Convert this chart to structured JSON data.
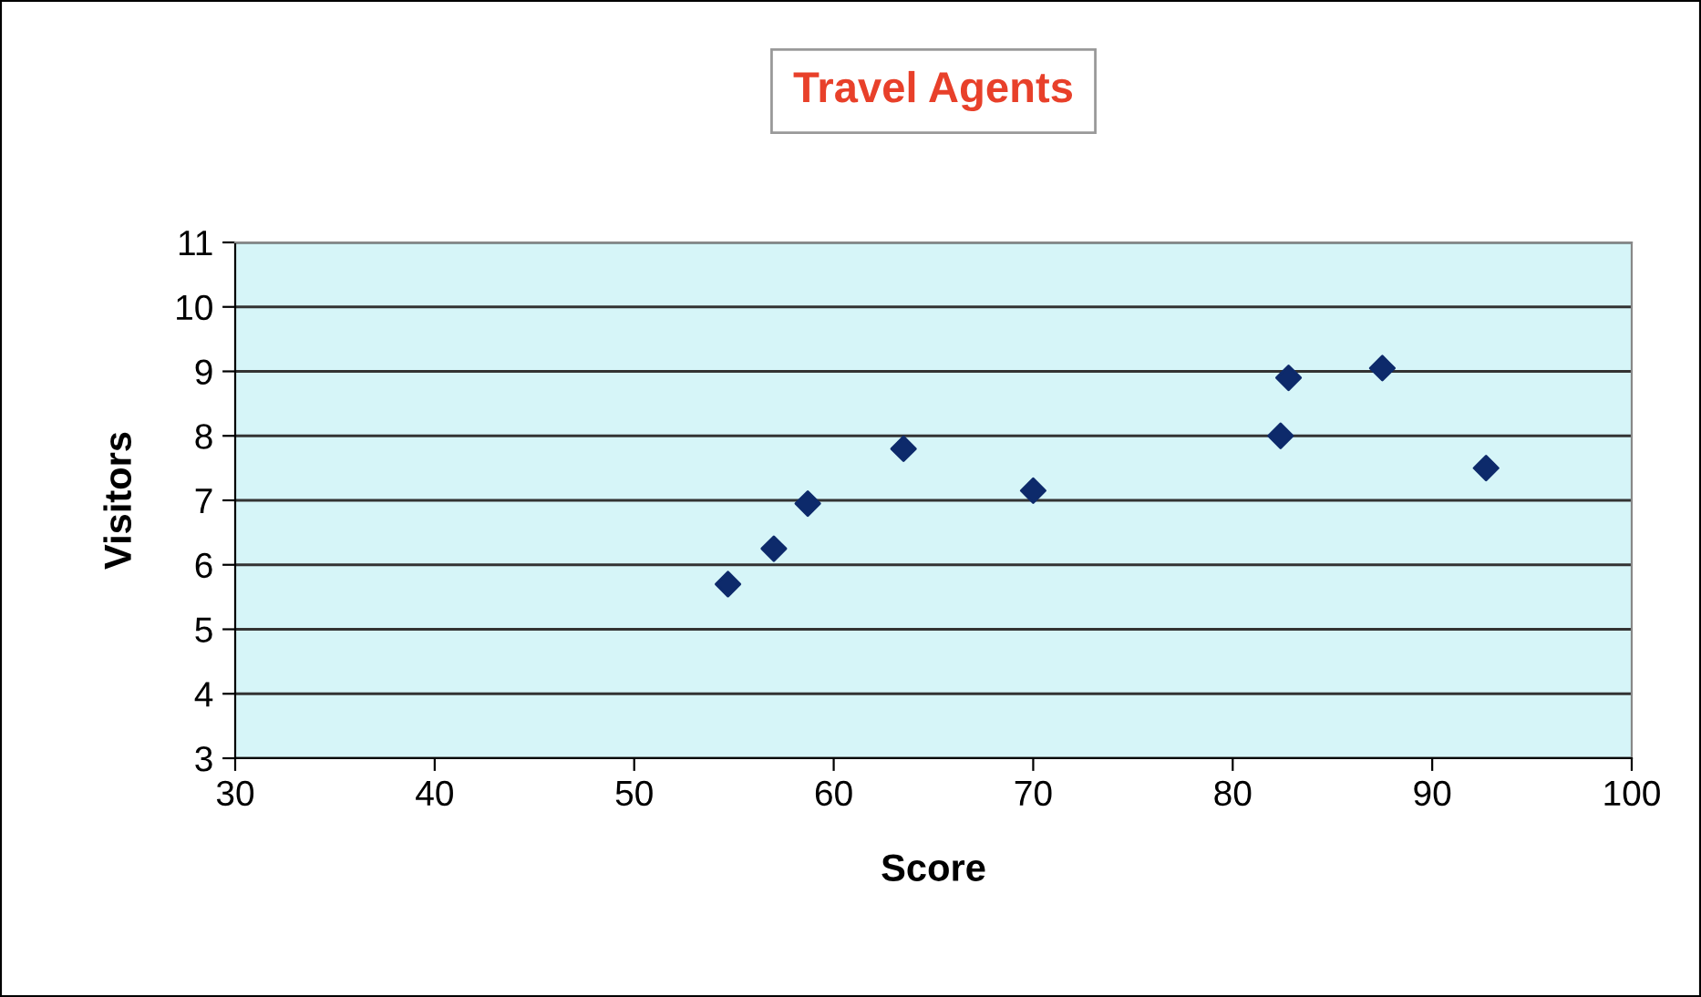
{
  "chart_data": {
    "type": "scatter",
    "title": "Travel Agents",
    "xlabel": "Score",
    "ylabel": "Visitors",
    "x": [
      54.7,
      57.0,
      58.7,
      63.5,
      70.0,
      82.4,
      82.8,
      87.5,
      92.7
    ],
    "series": [
      {
        "color": "#0d2a6b",
        "values": [
          5.7,
          6.25,
          6.95,
          7.8,
          7.15,
          8.0,
          8.9,
          9.05,
          7.5
        ]
      }
    ],
    "xlim": [
      30,
      100
    ],
    "xticks": [
      30,
      40,
      50,
      60,
      70,
      80,
      90,
      100
    ],
    "ylim": [
      3,
      11
    ],
    "yticks": [
      3,
      4,
      5,
      6,
      7,
      8,
      9,
      10,
      11
    ],
    "grid": "y",
    "marker": "diamond",
    "legend": false
  }
}
